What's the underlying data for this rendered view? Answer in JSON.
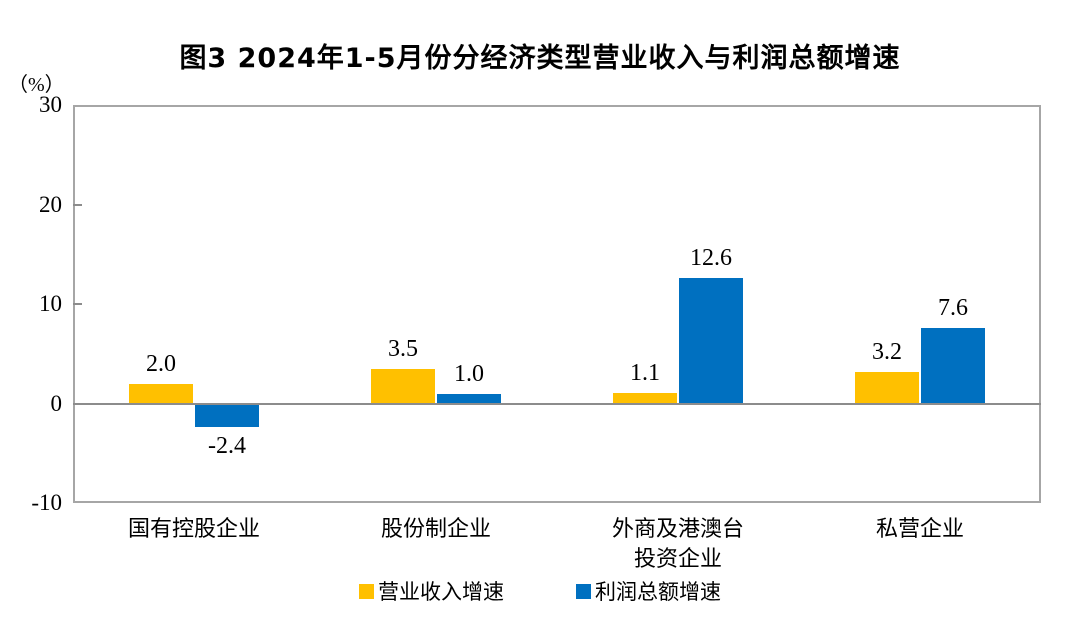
{
  "title": "图3 2024年1-5月份分经济类型营业收入与利润总额增速",
  "y_axis_unit": "（%）",
  "colors": {
    "revenue_series": "#FFC000",
    "profit_series": "#0070C0",
    "axis_border": "#A6A6A6",
    "zero_line": "#8C8C8C",
    "text": "#000000",
    "background": "#FFFFFF"
  },
  "legend": [
    {
      "label": "营业收入增速",
      "color": "#FFC000"
    },
    {
      "label": "利润总额增速",
      "color": "#0070C0"
    }
  ],
  "chart_data": {
    "type": "bar",
    "title": "图3 2024年1-5月份分经济类型营业收入与利润总额增速",
    "categories": [
      "国有控股企业",
      "股份制企业",
      "外商及港澳台\n投资企业",
      "私营企业"
    ],
    "series": [
      {
        "name": "营业收入增速",
        "color": "#FFC000",
        "values": [
          2.0,
          3.5,
          1.1,
          3.2
        ]
      },
      {
        "name": "利润总额增速",
        "color": "#0070C0",
        "values": [
          -2.4,
          1.0,
          12.6,
          7.6
        ]
      }
    ],
    "data_labels": {
      "营业收入增速": [
        "2.0",
        "3.5",
        "1.1",
        "3.2"
      ],
      "利润总额增速": [
        "-2.4",
        "1.0",
        "12.6",
        "7.6"
      ]
    },
    "xlabel": "",
    "ylabel": "（%）",
    "ylim": [
      -10,
      30
    ],
    "yticks": [
      30,
      20,
      10,
      0,
      -10
    ],
    "grid": false,
    "zero_line": true,
    "legend_position": "bottom",
    "data_label_position": "outside-end"
  }
}
